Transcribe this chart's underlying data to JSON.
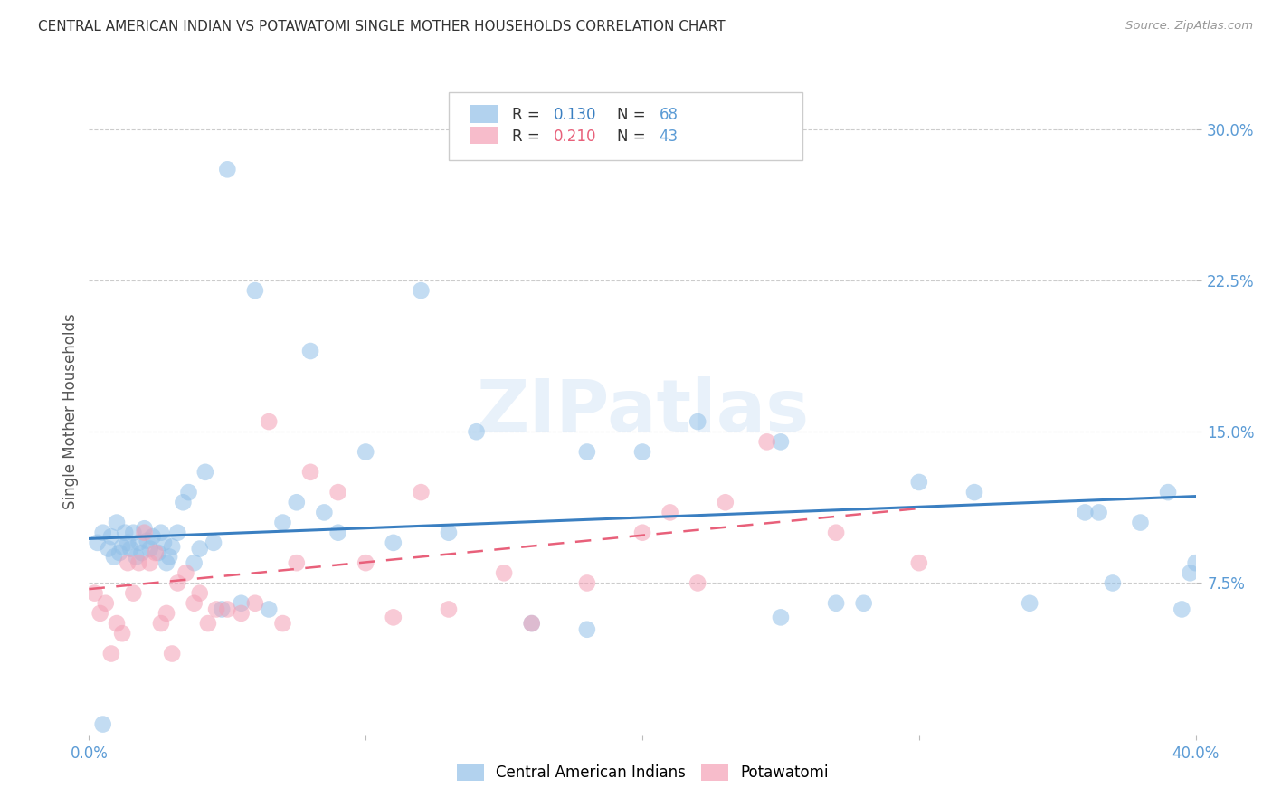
{
  "title": "CENTRAL AMERICAN INDIAN VS POTAWATOMI SINGLE MOTHER HOUSEHOLDS CORRELATION CHART",
  "source": "Source: ZipAtlas.com",
  "ylabel": "Single Mother Households",
  "xlim": [
    0.0,
    0.4
  ],
  "ylim": [
    0.0,
    0.32
  ],
  "xticks": [
    0.0,
    0.1,
    0.2,
    0.3,
    0.4
  ],
  "xtick_labels": [
    "0.0%",
    "",
    "",
    "",
    "40.0%"
  ],
  "ytick_labels_right": [
    "30.0%",
    "22.5%",
    "15.0%",
    "7.5%"
  ],
  "ytick_vals_right": [
    0.3,
    0.225,
    0.15,
    0.075
  ],
  "gridline_vals": [
    0.3,
    0.225,
    0.15,
    0.075
  ],
  "legend_r1": "R = 0.130",
  "legend_n1": "N = 68",
  "legend_r2": "R = 0.210",
  "legend_n2": "N = 43",
  "color_blue": "#92c0e8",
  "color_pink": "#f4a0b5",
  "color_blue_line": "#3a7fc1",
  "color_pink_line": "#e8607a",
  "color_title": "#333333",
  "color_source": "#999999",
  "color_axis_label": "#555555",
  "color_right_ticks": "#5b9bd5",
  "color_bottom_ticks": "#5b9bd5",
  "watermark": "ZIPatlas",
  "blue_scatter_x": [
    0.003,
    0.005,
    0.007,
    0.008,
    0.009,
    0.01,
    0.011,
    0.012,
    0.013,
    0.014,
    0.015,
    0.016,
    0.017,
    0.018,
    0.019,
    0.02,
    0.021,
    0.022,
    0.023,
    0.025,
    0.026,
    0.027,
    0.028,
    0.029,
    0.03,
    0.032,
    0.034,
    0.036,
    0.038,
    0.04,
    0.042,
    0.045,
    0.048,
    0.05,
    0.055,
    0.06,
    0.065,
    0.07,
    0.075,
    0.08,
    0.085,
    0.09,
    0.1,
    0.11,
    0.12,
    0.13,
    0.14,
    0.16,
    0.18,
    0.2,
    0.22,
    0.25,
    0.27,
    0.3,
    0.32,
    0.34,
    0.36,
    0.365,
    0.37,
    0.38,
    0.39,
    0.395,
    0.398,
    0.4,
    0.005,
    0.18,
    0.25,
    0.28
  ],
  "blue_scatter_y": [
    0.095,
    0.1,
    0.092,
    0.098,
    0.088,
    0.105,
    0.09,
    0.093,
    0.1,
    0.095,
    0.092,
    0.1,
    0.088,
    0.095,
    0.09,
    0.102,
    0.096,
    0.092,
    0.098,
    0.09,
    0.1,
    0.095,
    0.085,
    0.088,
    0.093,
    0.1,
    0.115,
    0.12,
    0.085,
    0.092,
    0.13,
    0.095,
    0.062,
    0.28,
    0.065,
    0.22,
    0.062,
    0.105,
    0.115,
    0.19,
    0.11,
    0.1,
    0.14,
    0.095,
    0.22,
    0.1,
    0.15,
    0.055,
    0.052,
    0.14,
    0.155,
    0.145,
    0.065,
    0.125,
    0.12,
    0.065,
    0.11,
    0.11,
    0.075,
    0.105,
    0.12,
    0.062,
    0.08,
    0.085,
    0.005,
    0.14,
    0.058,
    0.065
  ],
  "pink_scatter_x": [
    0.002,
    0.004,
    0.006,
    0.008,
    0.01,
    0.012,
    0.014,
    0.016,
    0.018,
    0.02,
    0.022,
    0.024,
    0.026,
    0.028,
    0.03,
    0.032,
    0.035,
    0.038,
    0.04,
    0.043,
    0.046,
    0.05,
    0.055,
    0.06,
    0.065,
    0.07,
    0.075,
    0.08,
    0.09,
    0.1,
    0.11,
    0.12,
    0.13,
    0.15,
    0.16,
    0.18,
    0.2,
    0.21,
    0.22,
    0.23,
    0.245,
    0.27,
    0.3
  ],
  "pink_scatter_y": [
    0.07,
    0.06,
    0.065,
    0.04,
    0.055,
    0.05,
    0.085,
    0.07,
    0.085,
    0.1,
    0.085,
    0.09,
    0.055,
    0.06,
    0.04,
    0.075,
    0.08,
    0.065,
    0.07,
    0.055,
    0.062,
    0.062,
    0.06,
    0.065,
    0.155,
    0.055,
    0.085,
    0.13,
    0.12,
    0.085,
    0.058,
    0.12,
    0.062,
    0.08,
    0.055,
    0.075,
    0.1,
    0.11,
    0.075,
    0.115,
    0.145,
    0.1,
    0.085
  ],
  "blue_trend_x0": 0.0,
  "blue_trend_x1": 0.4,
  "blue_trend_y0": 0.097,
  "blue_trend_y1": 0.118,
  "pink_trend_x0": 0.0,
  "pink_trend_x1": 0.3,
  "pink_trend_y0": 0.072,
  "pink_trend_y1": 0.112
}
